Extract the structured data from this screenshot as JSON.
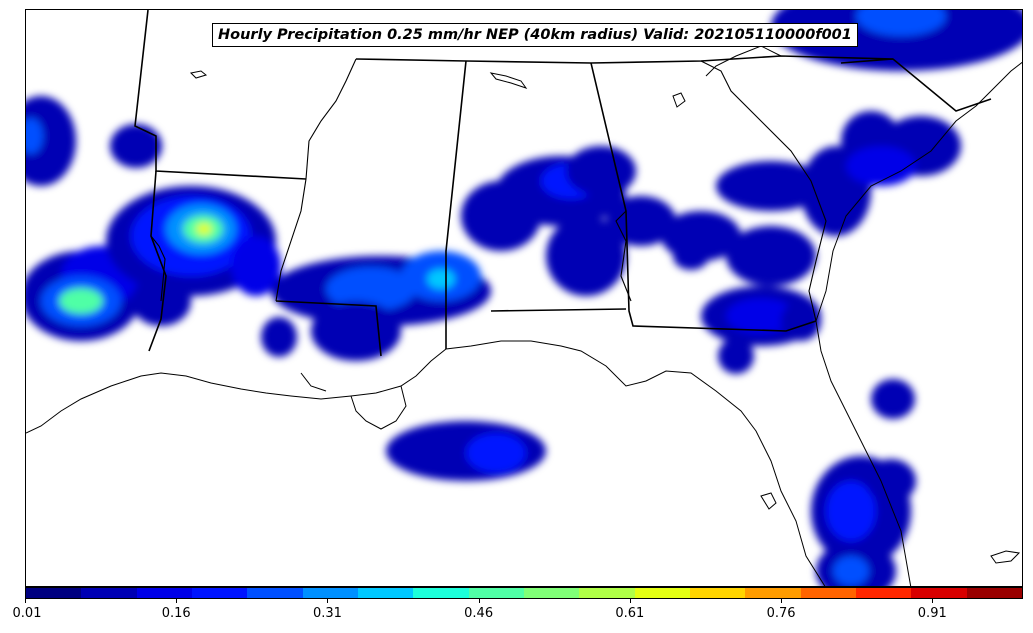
{
  "title": "Hourly Precipitation 0.25 mm/hr NEP (40km radius) Valid: 202105110000f001",
  "colorbar": {
    "min": 0.01,
    "max": 1.0,
    "tick_labels": [
      "0.01",
      "0.16",
      "0.31",
      "0.46",
      "0.61",
      "0.76",
      "0.91"
    ],
    "colors": [
      "#000080",
      "#0000b4",
      "#0000e8",
      "#0014ff",
      "#0050ff",
      "#0090ff",
      "#00c8ff",
      "#1cffda",
      "#50ffa6",
      "#80ff77",
      "#b0ff47",
      "#e4ff13",
      "#ffd400",
      "#ff9c00",
      "#ff6400",
      "#ff2800",
      "#d80000",
      "#9a0000"
    ]
  },
  "map": {
    "region": "Southeastern United States",
    "layers": [
      "state-borders",
      "coastlines",
      "precipitation-probability"
    ]
  }
}
